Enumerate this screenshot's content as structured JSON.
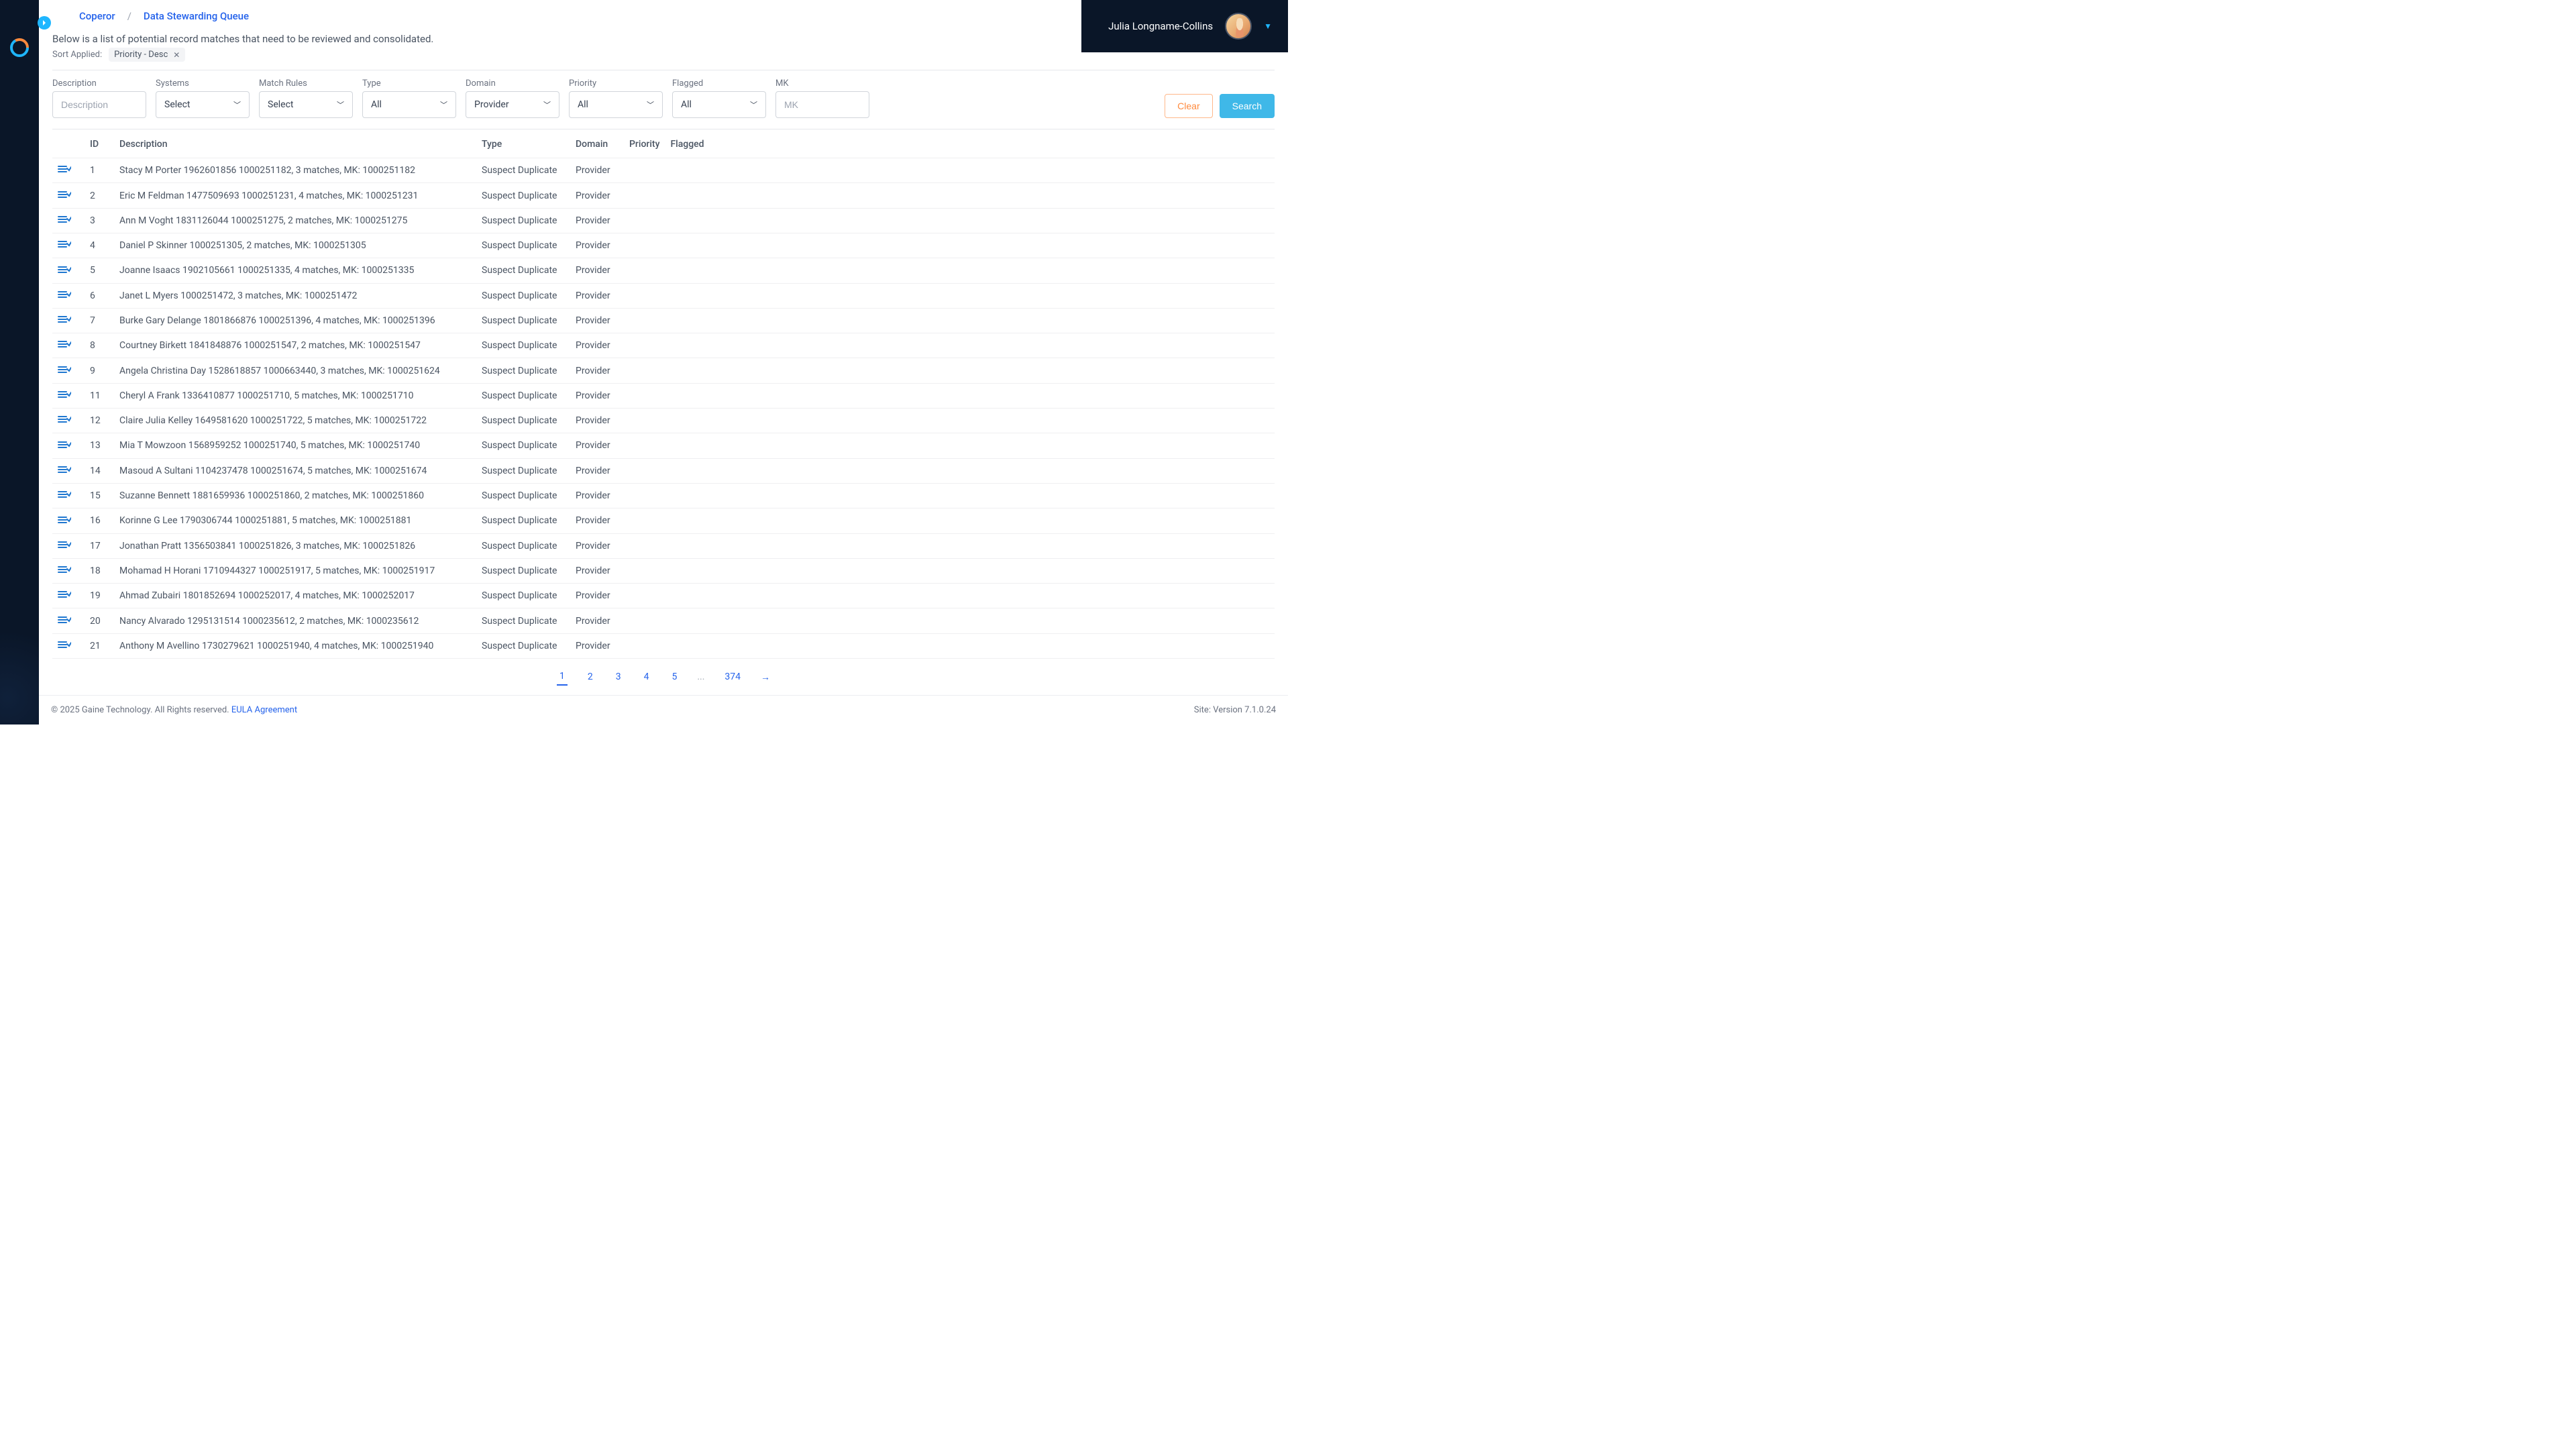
{
  "breadcrumb": {
    "root": "Coperor",
    "current": "Data Stewarding Queue"
  },
  "user": {
    "name": "Julia Longname-Collins"
  },
  "subtitle": "Below is a list of potential record matches that need to be reviewed and consolidated.",
  "sort": {
    "label": "Sort Applied:",
    "chip": "Priority - Desc"
  },
  "filters": {
    "description": {
      "label": "Description",
      "placeholder": "Description",
      "width": 140
    },
    "systems": {
      "label": "Systems",
      "value": "Select",
      "width": 140
    },
    "matchRules": {
      "label": "Match Rules",
      "value": "Select",
      "width": 140
    },
    "type": {
      "label": "Type",
      "value": "All",
      "width": 140
    },
    "domain": {
      "label": "Domain",
      "value": "Provider",
      "width": 140
    },
    "priority": {
      "label": "Priority",
      "value": "All",
      "width": 140
    },
    "flagged": {
      "label": "Flagged",
      "value": "All",
      "width": 140
    },
    "mk": {
      "label": "MK",
      "placeholder": "MK",
      "width": 140
    }
  },
  "buttons": {
    "clear": "Clear",
    "search": "Search"
  },
  "columns": {
    "id": "ID",
    "description": "Description",
    "type": "Type",
    "domain": "Domain",
    "priority": "Priority",
    "flagged": "Flagged"
  },
  "rows": [
    {
      "id": "1",
      "description": "Stacy M Porter 1962601856 1000251182, 3 matches, MK: 1000251182",
      "type": "Suspect Duplicate",
      "domain": "Provider"
    },
    {
      "id": "2",
      "description": "Eric M Feldman 1477509693 1000251231, 4 matches, MK: 1000251231",
      "type": "Suspect Duplicate",
      "domain": "Provider"
    },
    {
      "id": "3",
      "description": "Ann M Voght 1831126044 1000251275, 2 matches, MK: 1000251275",
      "type": "Suspect Duplicate",
      "domain": "Provider"
    },
    {
      "id": "4",
      "description": "Daniel P Skinner 1000251305, 2 matches, MK: 1000251305",
      "type": "Suspect Duplicate",
      "domain": "Provider"
    },
    {
      "id": "5",
      "description": "Joanne Isaacs 1902105661 1000251335, 4 matches, MK: 1000251335",
      "type": "Suspect Duplicate",
      "domain": "Provider"
    },
    {
      "id": "6",
      "description": "Janet L Myers 1000251472, 3 matches, MK: 1000251472",
      "type": "Suspect Duplicate",
      "domain": "Provider"
    },
    {
      "id": "7",
      "description": "Burke Gary Delange 1801866876 1000251396, 4 matches, MK: 1000251396",
      "type": "Suspect Duplicate",
      "domain": "Provider"
    },
    {
      "id": "8",
      "description": "Courtney Birkett 1841848876 1000251547, 2 matches, MK: 1000251547",
      "type": "Suspect Duplicate",
      "domain": "Provider"
    },
    {
      "id": "9",
      "description": "Angela Christina Day 1528618857 1000663440, 3 matches, MK: 1000251624",
      "type": "Suspect Duplicate",
      "domain": "Provider"
    },
    {
      "id": "11",
      "description": "Cheryl A Frank 1336410877 1000251710, 5 matches, MK: 1000251710",
      "type": "Suspect Duplicate",
      "domain": "Provider"
    },
    {
      "id": "12",
      "description": "Claire Julia Kelley 1649581620 1000251722, 5 matches, MK: 1000251722",
      "type": "Suspect Duplicate",
      "domain": "Provider"
    },
    {
      "id": "13",
      "description": "Mia T Mowzoon 1568959252 1000251740, 5 matches, MK: 1000251740",
      "type": "Suspect Duplicate",
      "domain": "Provider"
    },
    {
      "id": "14",
      "description": "Masoud A Sultani 1104237478 1000251674, 5 matches, MK: 1000251674",
      "type": "Suspect Duplicate",
      "domain": "Provider"
    },
    {
      "id": "15",
      "description": "Suzanne Bennett 1881659936 1000251860, 2 matches, MK: 1000251860",
      "type": "Suspect Duplicate",
      "domain": "Provider"
    },
    {
      "id": "16",
      "description": "Korinne G Lee 1790306744 1000251881, 5 matches, MK: 1000251881",
      "type": "Suspect Duplicate",
      "domain": "Provider"
    },
    {
      "id": "17",
      "description": "Jonathan Pratt 1356503841 1000251826, 3 matches, MK: 1000251826",
      "type": "Suspect Duplicate",
      "domain": "Provider"
    },
    {
      "id": "18",
      "description": "Mohamad H Horani 1710944327 1000251917, 5 matches, MK: 1000251917",
      "type": "Suspect Duplicate",
      "domain": "Provider"
    },
    {
      "id": "19",
      "description": "Ahmad Zubairi 1801852694 1000252017, 4 matches, MK: 1000252017",
      "type": "Suspect Duplicate",
      "domain": "Provider"
    },
    {
      "id": "20",
      "description": "Nancy Alvarado 1295131514 1000235612, 2 matches, MK: 1000235612",
      "type": "Suspect Duplicate",
      "domain": "Provider"
    },
    {
      "id": "21",
      "description": "Anthony M Avellino 1730279621 1000251940, 4 matches, MK: 1000251940",
      "type": "Suspect Duplicate",
      "domain": "Provider"
    }
  ],
  "pagination": {
    "pages": [
      "1",
      "2",
      "3",
      "4",
      "5"
    ],
    "last": "374",
    "active": "1"
  },
  "footer": {
    "copyright": "© 2025 Gaine Technology. All Rights reserved.",
    "eula": "EULA Agreement",
    "version": "Site: Version 7.1.0.24"
  }
}
